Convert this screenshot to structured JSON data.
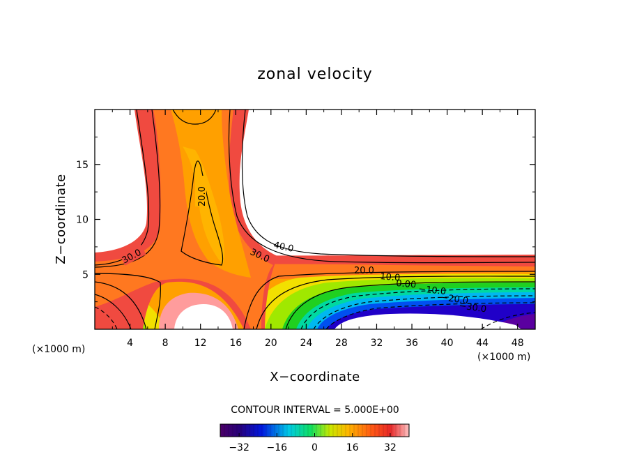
{
  "chart_data": {
    "type": "heatmap",
    "title": "zonal velocity",
    "xlabel": "X−coordinate",
    "ylabel": "Z−coordinate",
    "x_unit_left": "(×1000 m)",
    "x_unit_right": "(×1000 m)",
    "xlim": [
      0,
      50
    ],
    "ylim": [
      0,
      20
    ],
    "x_ticks": [
      4,
      8,
      12,
      16,
      20,
      24,
      28,
      32,
      36,
      40,
      44,
      48
    ],
    "x_tick_labels": [
      "4",
      "8",
      "12",
      "16",
      "20",
      "24",
      "28",
      "32",
      "36",
      "40",
      "44",
      "48"
    ],
    "y_ticks": [
      5,
      10,
      15
    ],
    "y_tick_labels": [
      "5",
      "10",
      "15"
    ],
    "contour_interval_text": "CONTOUR INTERVAL = 5.000E+00",
    "contour_interval": 5.0,
    "contour_labels": [
      "20.0",
      "30.0",
      "30.0",
      "40.0",
      "20.0",
      "10.0",
      "0.00",
      "−10.0",
      "−20.0",
      "−30.0"
    ],
    "colorbar": {
      "range": [
        -40,
        40
      ],
      "ticks": [
        -32,
        -16,
        0,
        16,
        32
      ],
      "tick_labels": [
        "−32",
        "−16",
        "0",
        "16",
        "32"
      ]
    },
    "masked_regions": [
      "upper-right region above the flow layer (white)",
      "lower obstacle near x=8-16",
      "lower obstacle near x=26-48"
    ]
  }
}
